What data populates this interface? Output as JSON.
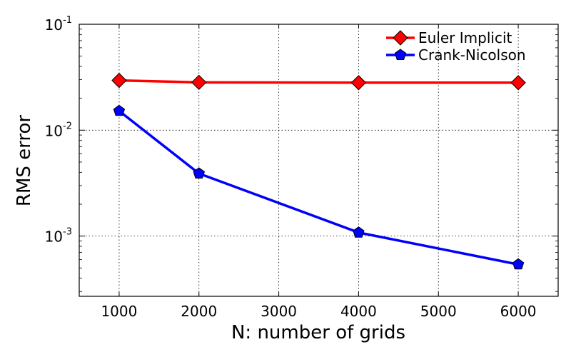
{
  "chart_data": {
    "type": "line",
    "title": "",
    "xlabel": "N: number of grids",
    "ylabel": "RMS error",
    "x": [
      1000,
      2000,
      4000,
      6000
    ],
    "xlim": [
      500,
      6500
    ],
    "ylim": [
      0.00027,
      0.1
    ],
    "yscale": "log",
    "grid": true,
    "legend_position": "top-right",
    "x_ticks": [
      "1000",
      "2000",
      "3000",
      "4000",
      "5000",
      "6000"
    ],
    "y_ticks": [
      {
        "base": "10",
        "exp": "-3",
        "value": 0.001
      },
      {
        "base": "10",
        "exp": "-2",
        "value": 0.01
      },
      {
        "base": "10",
        "exp": "-1",
        "value": 0.1
      }
    ],
    "series": [
      {
        "name": "Euler Implicit",
        "values": [
          0.0295,
          0.0283,
          0.0281,
          0.0281
        ],
        "color": "#ff0000",
        "marker": "diamond"
      },
      {
        "name": "Crank-Nicolson",
        "values": [
          0.0152,
          0.0039,
          0.00108,
          0.00054
        ],
        "color": "#0000ff",
        "marker": "pentagon"
      }
    ]
  }
}
